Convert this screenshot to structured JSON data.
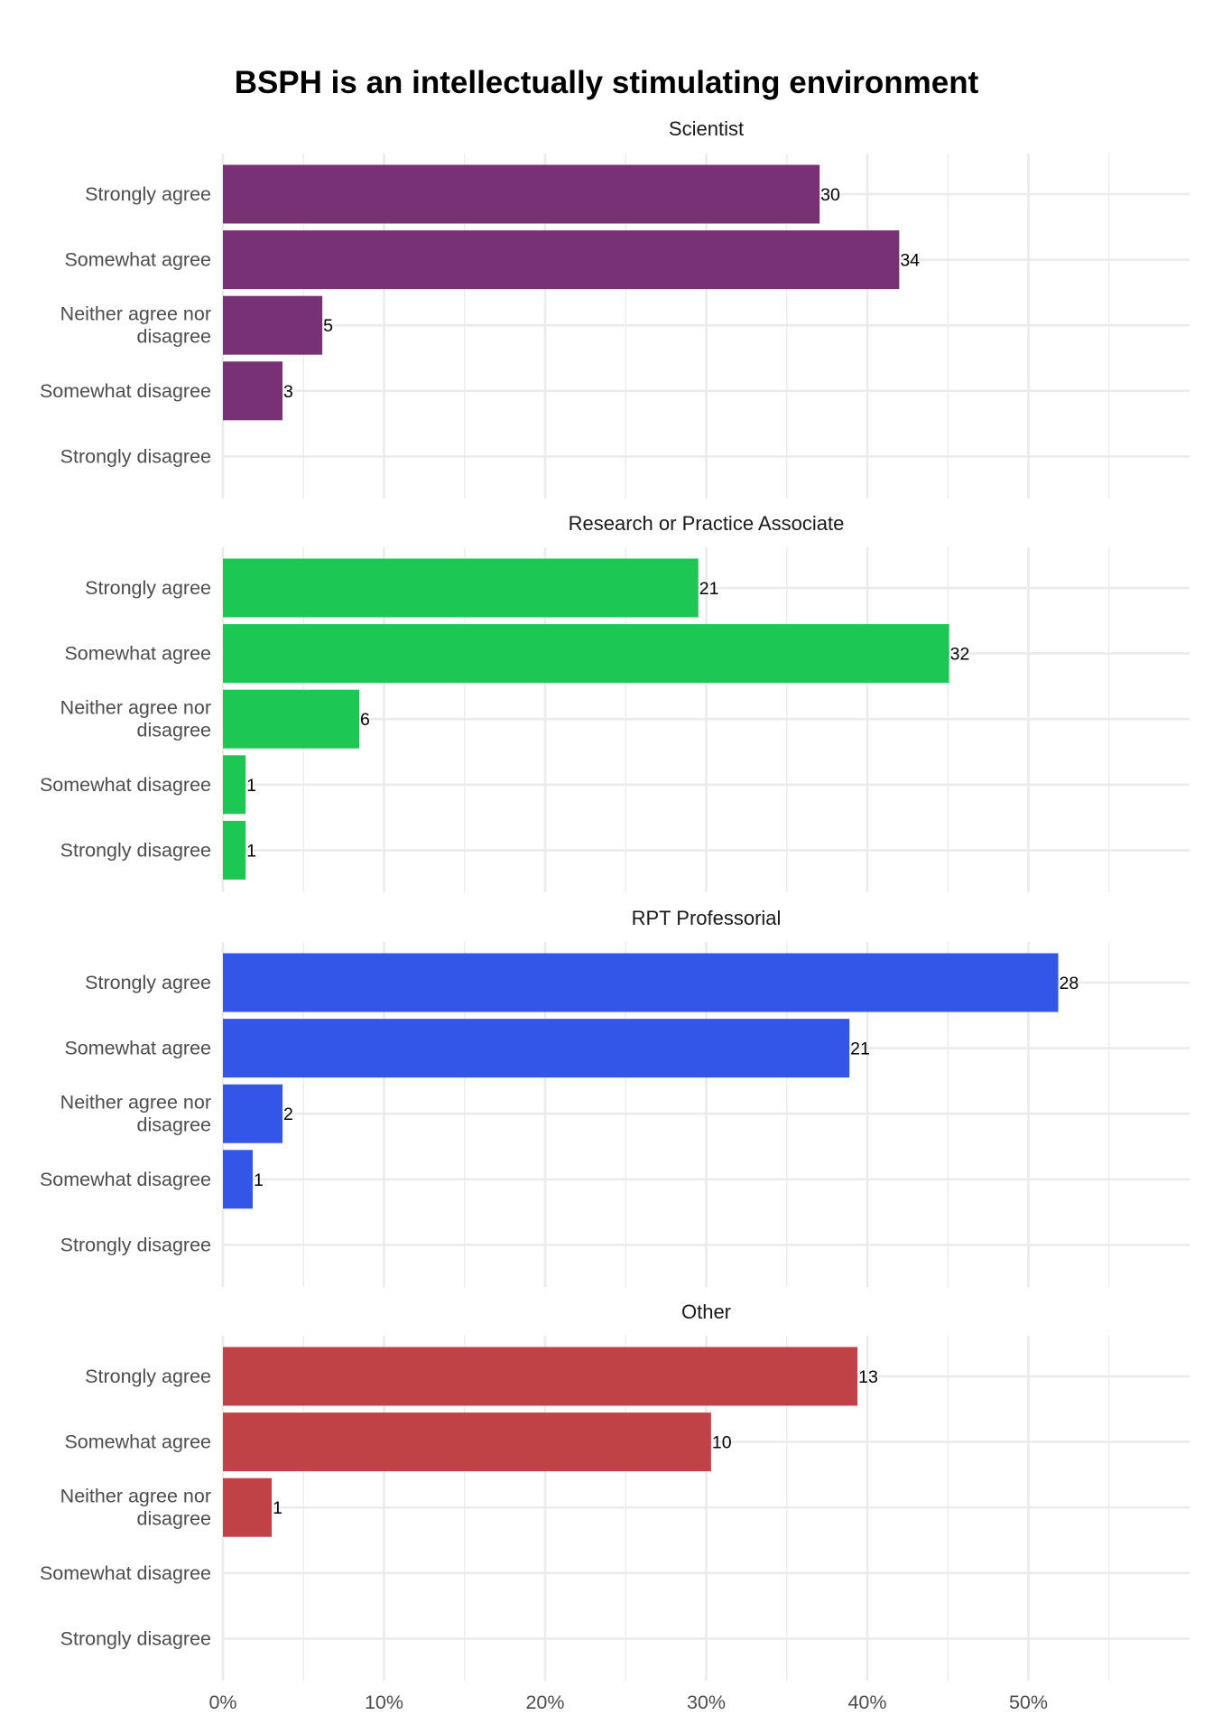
{
  "chart_data": {
    "type": "bar",
    "orientation": "horizontal",
    "title": "BSPH is an intellectually stimulating environment",
    "xlabel": "",
    "ylabel": "",
    "xlim": [
      0,
      0.6
    ],
    "x_ticks": [
      0,
      0.1,
      0.2,
      0.3,
      0.4,
      0.5
    ],
    "x_tick_labels": [
      "0%",
      "10%",
      "20%",
      "30%",
      "40%",
      "50%"
    ],
    "grid": true,
    "categories": [
      "Strongly agree",
      "Somewhat agree",
      "Neither agree nor disagree",
      "Somewhat disagree",
      "Strongly disagree"
    ],
    "category_display": [
      "Strongly agree",
      "Somewhat agree",
      "Neither agree nor\ndisagree",
      "Somewhat disagree",
      "Strongly disagree"
    ],
    "panels": [
      {
        "name": "Scientist",
        "color": "#773174",
        "counts": [
          30,
          34,
          5,
          3,
          null
        ],
        "values": [
          0.3704,
          0.4198,
          0.0617,
          0.037,
          0
        ]
      },
      {
        "name": "Research or Practice Associate",
        "color": "#1dc754",
        "counts": [
          21,
          32,
          6,
          1,
          1
        ],
        "values": [
          0.2951,
          0.4508,
          0.0846,
          0.0141,
          0.0141
        ]
      },
      {
        "name": "RPT Professorial",
        "color": "#3355e8",
        "counts": [
          28,
          21,
          2,
          1,
          null
        ],
        "values": [
          0.5185,
          0.3889,
          0.037,
          0.0185,
          0
        ]
      },
      {
        "name": "Other",
        "color": "#c04146",
        "counts": [
          13,
          10,
          1,
          null,
          null
        ],
        "values": [
          0.3939,
          0.303,
          0.0303,
          0,
          0
        ]
      }
    ]
  }
}
